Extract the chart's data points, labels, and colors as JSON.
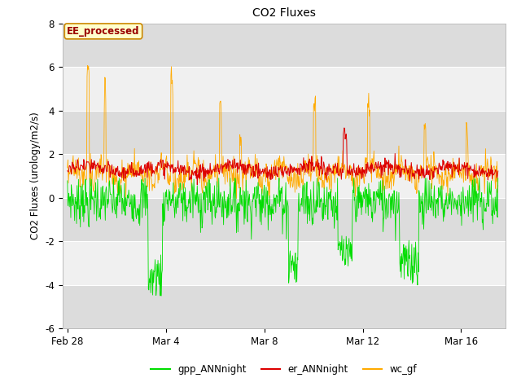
{
  "title": "CO2 Fluxes",
  "ylabel": "CO2 Fluxes (urology/m2/s)",
  "ylim": [
    -6,
    8
  ],
  "yticks": [
    -6,
    -4,
    -2,
    0,
    2,
    4,
    6,
    8
  ],
  "band_light": "#f0f0f0",
  "band_dark": "#dcdcdc",
  "line_colors": {
    "gpp": "#00dd00",
    "er": "#dd0000",
    "wc": "#ffaa00"
  },
  "legend_labels": [
    "gpp_ANNnight",
    "er_ANNnight",
    "wc_gf"
  ],
  "annotation_text": "EE_processed",
  "annotation_bg": "#ffffcc",
  "annotation_border": "#cc8800",
  "annotation_text_color": "#990000",
  "x_tick_labels": [
    "Feb 28",
    "Mar 4",
    "Mar 8",
    "Mar 12",
    "Mar 16"
  ],
  "x_tick_pos": [
    0,
    4,
    8,
    12,
    16
  ],
  "xlim": [
    -0.2,
    17.8
  ],
  "n_points": 900
}
